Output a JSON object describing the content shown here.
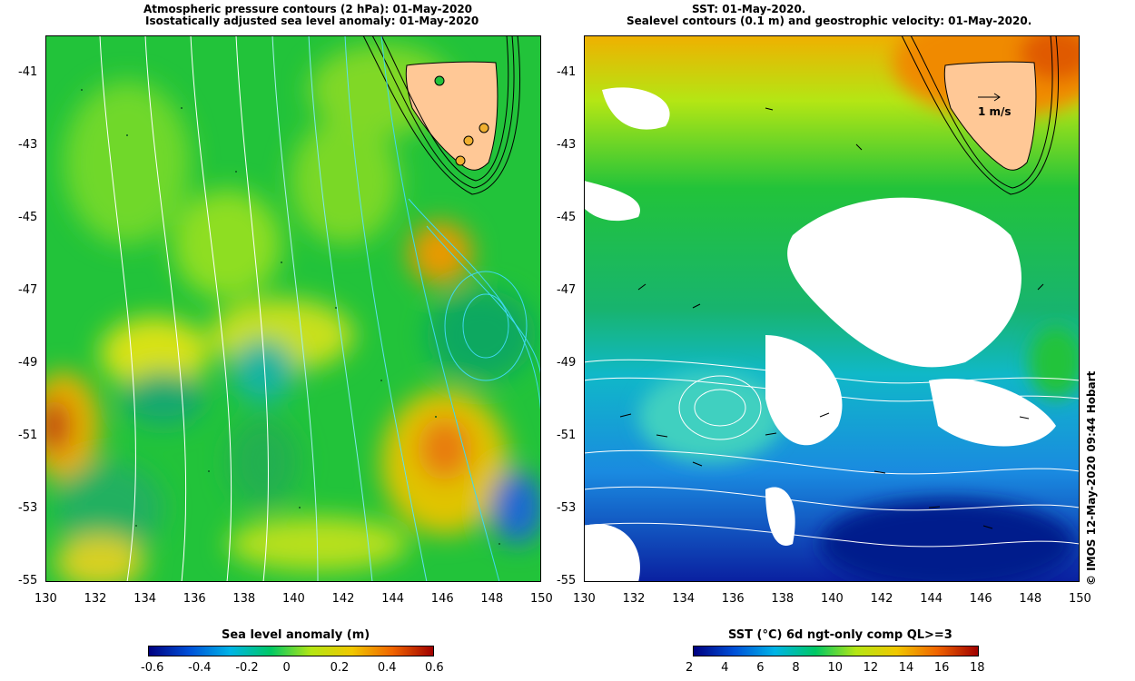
{
  "left_panel": {
    "title_line1": "Atmospheric pressure contours (2 hPa): 01-May-2020",
    "title_line2": "Isostatically adjusted sea level anomaly: 01-May-2020",
    "colorbar_title": "Sea level anomaly (m)",
    "colorbar_ticks": [
      "-0.6",
      "-0.4",
      "-0.2",
      "0",
      "0.2",
      "0.4",
      "0.6"
    ],
    "colorbar_colors": [
      "#000080",
      "#0050d8",
      "#00b4e6",
      "#00c864",
      "#b4e614",
      "#f0c800",
      "#f06400",
      "#a00000"
    ]
  },
  "right_panel": {
    "title_line1": "SST: 01-May-2020.",
    "title_line2": "Sealevel contours (0.1 m) and geostrophic velocity: 01-May-2020.",
    "velocity_label": "1 m/s",
    "colorbar_title": "SST (°C) 6d ngt-only comp QL>=3",
    "colorbar_ticks": [
      "2",
      "4",
      "6",
      "8",
      "10",
      "12",
      "14",
      "16",
      "18"
    ],
    "colorbar_colors": [
      "#000080",
      "#0050d8",
      "#00b4e6",
      "#00c864",
      "#b4e614",
      "#f0c800",
      "#f06400",
      "#a00000"
    ]
  },
  "axes": {
    "lat_ticks": [
      "-41",
      "-43",
      "-45",
      "-47",
      "-49",
      "-51",
      "-53",
      "-55"
    ],
    "lon_ticks": [
      "130",
      "132",
      "134",
      "136",
      "138",
      "140",
      "142",
      "144",
      "146",
      "148",
      "150"
    ]
  },
  "credit": "© IMOS 12-May-2020 09:44 Hobart"
}
